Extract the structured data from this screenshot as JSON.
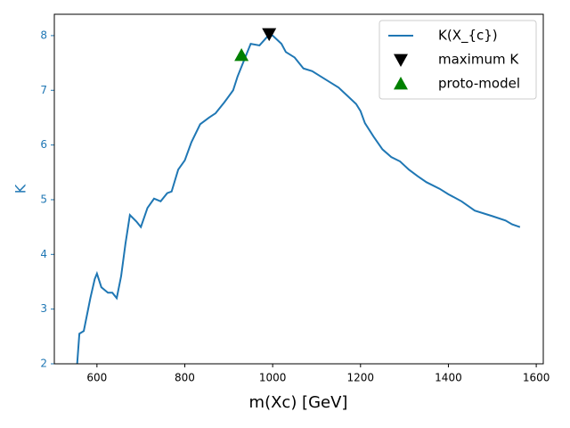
{
  "chart_data": {
    "type": "line",
    "xlabel": "m(Xc) [GeV]",
    "ylabel": "K",
    "xlim": [
      503,
      1616
    ],
    "ylim": [
      2,
      8.39
    ],
    "xticks": [
      600,
      800,
      1000,
      1200,
      1400,
      1600
    ],
    "yticks": [
      2,
      3,
      4,
      5,
      6,
      7,
      8
    ],
    "legend": "upper right",
    "series": [
      {
        "name": "K(X_{c})",
        "color": "#1f77b4",
        "marker": "line",
        "x": [
          555,
          560,
          570,
          585,
          595,
          600,
          610,
          625,
          635,
          645,
          655,
          665,
          675,
          690,
          700,
          715,
          730,
          745,
          760,
          770,
          785,
          800,
          815,
          835,
          855,
          870,
          890,
          910,
          920,
          935,
          950,
          970,
          990,
          1000,
          1020,
          1030,
          1050,
          1070,
          1090,
          1110,
          1130,
          1150,
          1170,
          1190,
          1200,
          1210,
          1230,
          1250,
          1270,
          1290,
          1310,
          1330,
          1350,
          1380,
          1400,
          1430,
          1460,
          1500,
          1530,
          1545,
          1563
        ],
        "values": [
          2.0,
          2.55,
          2.6,
          3.2,
          3.55,
          3.65,
          3.4,
          3.3,
          3.3,
          3.2,
          3.6,
          4.2,
          4.72,
          4.6,
          4.5,
          4.85,
          5.02,
          4.97,
          5.12,
          5.15,
          5.55,
          5.72,
          6.05,
          6.38,
          6.5,
          6.58,
          6.78,
          7.0,
          7.25,
          7.55,
          7.85,
          7.82,
          8.0,
          8.0,
          7.85,
          7.7,
          7.6,
          7.4,
          7.35,
          7.25,
          7.15,
          7.05,
          6.9,
          6.75,
          6.62,
          6.4,
          6.15,
          5.92,
          5.78,
          5.7,
          5.55,
          5.43,
          5.32,
          5.2,
          5.1,
          4.97,
          4.8,
          4.7,
          4.62,
          4.55,
          4.5
        ]
      },
      {
        "name": "maximum K",
        "color": "#000000",
        "marker": "down",
        "x": [
          992
        ],
        "values": [
          8.03
        ]
      },
      {
        "name": "proto-model",
        "color": "#008000",
        "marker": "up",
        "x": [
          929
        ],
        "values": [
          7.64
        ]
      }
    ]
  }
}
